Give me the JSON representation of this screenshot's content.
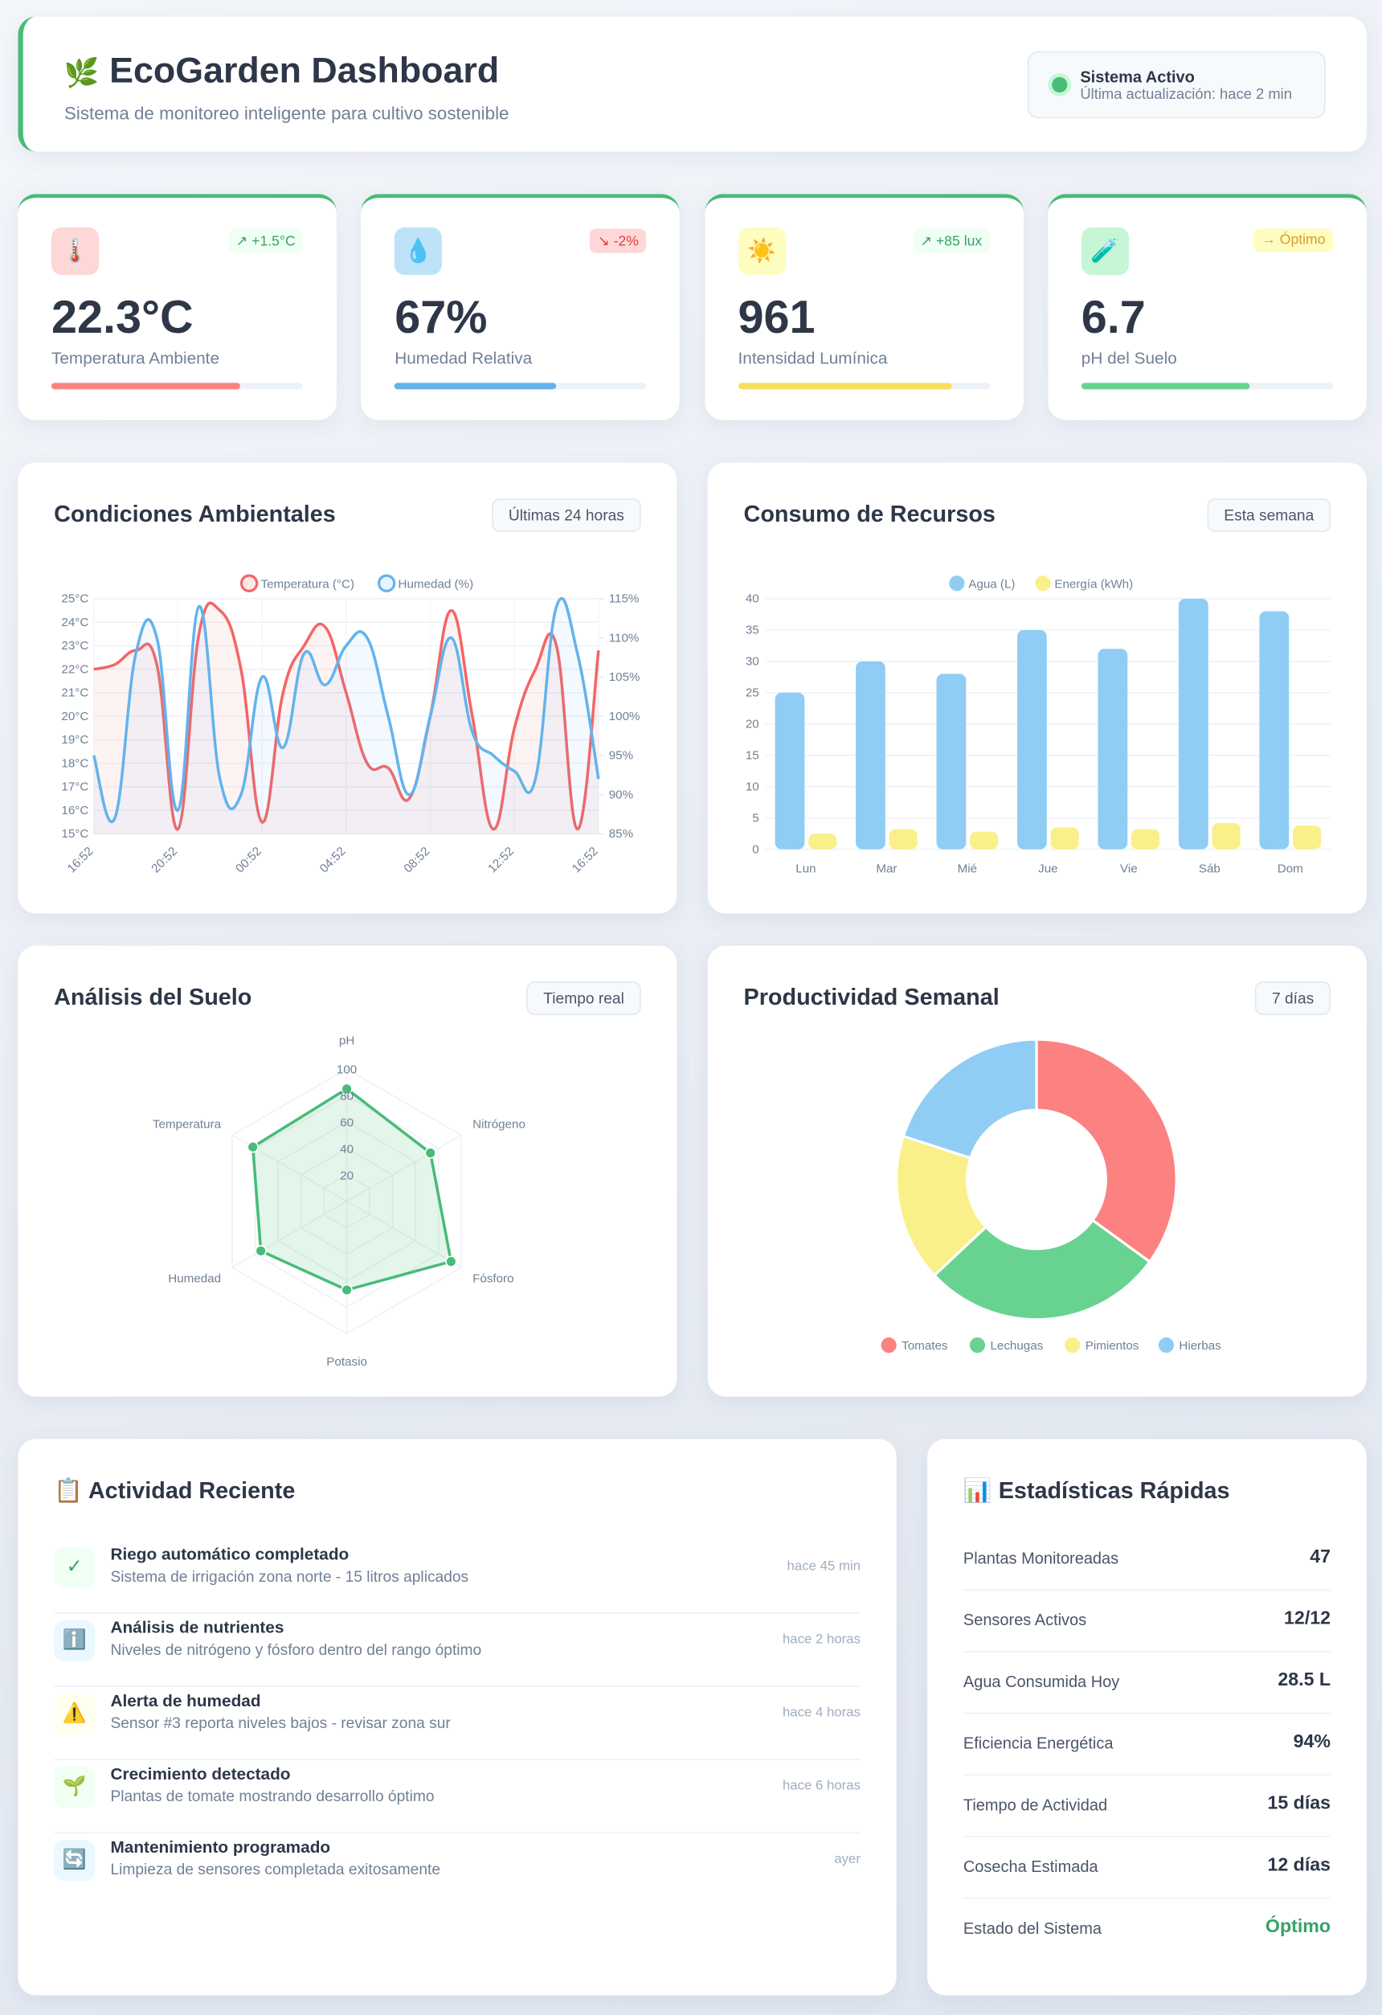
{
  "header": {
    "icon": "🌿",
    "title": "EcoGarden Dashboard",
    "subtitle": "Sistema de monitoreo inteligente para cultivo sostenible",
    "status": {
      "label": "Sistema Activo",
      "updated": "Última actualización: hace 2 min"
    }
  },
  "kpis": [
    {
      "icon": "🌡️",
      "icon_bg": "#fed7d7",
      "change": "↗ +1.5°C",
      "trend": "up",
      "value": "22.3°C",
      "label": "Temperatura Ambiente",
      "progress": 75,
      "color": "#fc8181"
    },
    {
      "icon": "💧",
      "icon_bg": "#bee3f8",
      "change": "↘ -2%",
      "trend": "down",
      "value": "67%",
      "label": "Humedad Relativa",
      "progress": 64,
      "color": "#63b3ed"
    },
    {
      "icon": "☀️",
      "icon_bg": "#fefcbf",
      "change": "↗ +85 lux",
      "trend": "up",
      "value": "961",
      "label": "Intensidad Lumínica",
      "progress": 85,
      "color": "#f6e05e"
    },
    {
      "icon": "🧪",
      "icon_bg": "#c6f6d5",
      "change": "→ Óptimo",
      "trend": "neutral",
      "value": "6.7",
      "label": "pH del Suelo",
      "progress": 67,
      "color": "#68d391"
    }
  ],
  "charts": {
    "conditions": {
      "type": "line",
      "title": "Condiciones Ambientales",
      "badge": "Últimas 24 horas",
      "categories": [
        "16:52",
        null,
        null,
        null,
        "20:52",
        null,
        null,
        null,
        "00:52",
        null,
        null,
        null,
        "04:52",
        null,
        null,
        null,
        "08:52",
        null,
        null,
        null,
        "12:52",
        null,
        null,
        null,
        "16:52"
      ],
      "series": [
        {
          "name": "Temperatura (°C)",
          "color": "#f56565",
          "axis": "y",
          "values": [
            22,
            22.2,
            22.8,
            22.2,
            15.2,
            23.5,
            24.5,
            22,
            15.5,
            21,
            23,
            23.8,
            21,
            18,
            17.8,
            16.5,
            20,
            24.5,
            20,
            15.2,
            19.5,
            22,
            23,
            15.2,
            22.8
          ]
        },
        {
          "name": "Humedad (%)",
          "color": "#63b3ed",
          "axis": "y2",
          "values": [
            95,
            87,
            108,
            110,
            88,
            114,
            92,
            90,
            105,
            96,
            108,
            104,
            109,
            110,
            100,
            90,
            100,
            110,
            98,
            95,
            93,
            92,
            114,
            108,
            92
          ]
        }
      ],
      "ylim": [
        15,
        25
      ],
      "yticks": [
        {
          "value": 15,
          "label": "15°C"
        },
        {
          "value": 16,
          "label": "16°C"
        },
        {
          "value": 17,
          "label": "17°C"
        },
        {
          "value": 18,
          "label": "18°C"
        },
        {
          "value": 19,
          "label": "19°C"
        },
        {
          "value": 20,
          "label": "20°C"
        },
        {
          "value": 21,
          "label": "21°C"
        },
        {
          "value": 22,
          "label": "22°C"
        },
        {
          "value": 23,
          "label": "23°C"
        },
        {
          "value": 24,
          "label": "24°C"
        },
        {
          "value": 25,
          "label": "25°C"
        }
      ],
      "y2lim": [
        85,
        115
      ],
      "y2ticks": [
        {
          "value": 85,
          "label": "85%"
        },
        {
          "value": 90,
          "label": "90%"
        },
        {
          "value": 95,
          "label": "95%"
        },
        {
          "value": 100,
          "label": "100%"
        },
        {
          "value": 105,
          "label": "105%"
        },
        {
          "value": 110,
          "label": "110%"
        },
        {
          "value": 115,
          "label": "115%"
        }
      ],
      "grid": true
    },
    "resources": {
      "type": "bar",
      "title": "Consumo de Recursos",
      "badge": "Esta semana",
      "categories": [
        "Lun",
        "Mar",
        "Mié",
        "Jue",
        "Vie",
        "Sáb",
        "Dom"
      ],
      "series": [
        {
          "name": "Agua (L)",
          "color": "#90cdf4",
          "values": [
            25,
            30,
            28,
            35,
            32,
            40,
            38
          ]
        },
        {
          "name": "Energía (kWh)",
          "color": "#faf089",
          "values": [
            2.5,
            3.2,
            2.8,
            3.5,
            3.2,
            4.2,
            3.8
          ]
        }
      ],
      "ylim": [
        0,
        40
      ],
      "yticks": [
        0,
        5,
        10,
        15,
        20,
        25,
        30,
        35,
        40
      ],
      "grid": true
    },
    "soil": {
      "type": "radar",
      "title": "Análisis del Suelo",
      "badge": "Tiempo real",
      "categories": [
        "pH",
        "Nitrógeno",
        "Fósforo",
        "Potasio",
        "Humedad",
        "Temperatura"
      ],
      "values": [
        85,
        73,
        91,
        67,
        75,
        82
      ],
      "color": "#48bb78",
      "rlim": [
        0,
        100
      ],
      "rticks": [
        20,
        40,
        60,
        80,
        100
      ]
    },
    "productivity": {
      "type": "doughnut",
      "title": "Productividad Semanal",
      "badge": "7 días",
      "categories": [
        "Tomates",
        "Lechugas",
        "Pimientos",
        "Hierbas"
      ],
      "values": [
        35,
        28,
        17,
        20
      ],
      "colors": [
        "#fc8181",
        "#68d391",
        "#faf089",
        "#90cdf4"
      ]
    }
  },
  "activity": {
    "title": "📋 Actividad Reciente",
    "items": [
      {
        "icon": "✓",
        "icon_bg": "#f0fff4",
        "title": "Riego automático completado",
        "description": "Sistema de irrigación zona norte - 15 litros aplicados",
        "time": "hace 45 min"
      },
      {
        "icon": "ℹ️",
        "icon_bg": "#ebf8ff",
        "title": "Análisis de nutrientes",
        "description": "Niveles de nitrógeno y fósforo dentro del rango óptimo",
        "time": "hace 2 horas"
      },
      {
        "icon": "⚠️",
        "icon_bg": "#fffff0",
        "title": "Alerta de humedad",
        "description": "Sensor #3 reporta niveles bajos - revisar zona sur",
        "time": "hace 4 horas"
      },
      {
        "icon": "🌱",
        "icon_bg": "#f0fff4",
        "title": "Crecimiento detectado",
        "description": "Plantas de tomate mostrando desarrollo óptimo",
        "time": "hace 6 horas"
      },
      {
        "icon": "🔄",
        "icon_bg": "#ebf8ff",
        "title": "Mantenimiento programado",
        "description": "Limpieza de sensores completada exitosamente",
        "time": "ayer"
      }
    ]
  },
  "stats": {
    "title": "📊 Estadísticas Rápidas",
    "rows": [
      {
        "label": "Plantas Monitoreadas",
        "value": "47"
      },
      {
        "label": "Sensores Activos",
        "value": "12/12"
      },
      {
        "label": "Agua Consumida Hoy",
        "value": "28.5 L"
      },
      {
        "label": "Eficiencia Energética",
        "value": "94%"
      },
      {
        "label": "Tiempo de Actividad",
        "value": "15 días"
      },
      {
        "label": "Cosecha Estimada",
        "value": "12 días"
      },
      {
        "label": "Estado del Sistema",
        "value": "Óptimo",
        "color": "#38a169"
      }
    ]
  }
}
